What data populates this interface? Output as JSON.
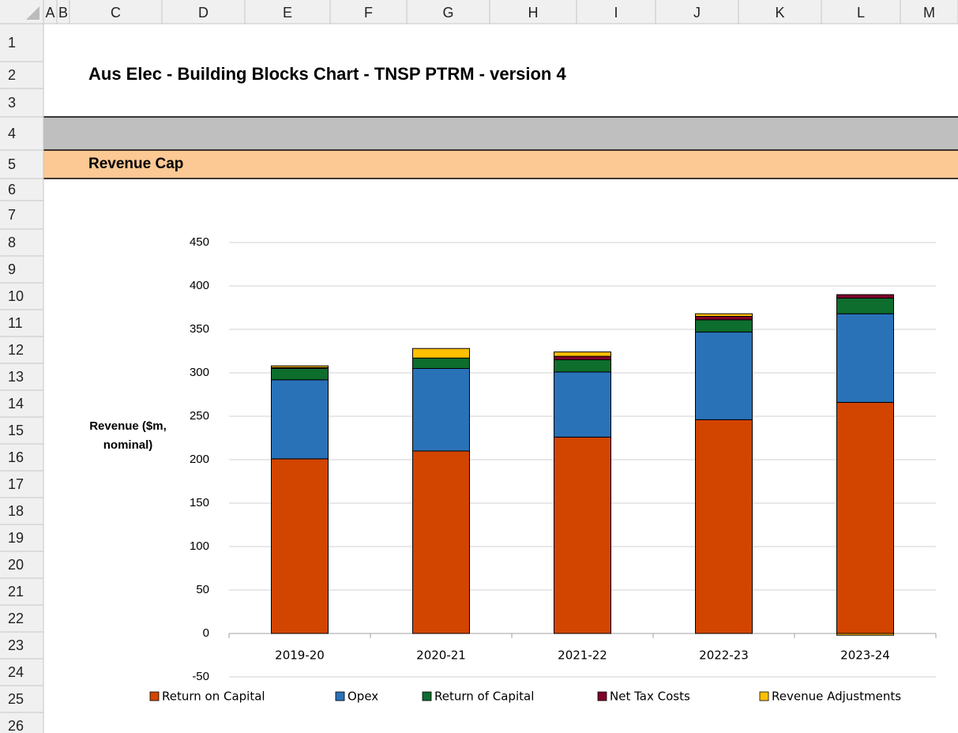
{
  "sheet": {
    "columns": [
      "A",
      "B",
      "C",
      "D",
      "E",
      "F",
      "G",
      "H",
      "I",
      "J",
      "K",
      "L",
      "M"
    ],
    "rows": [
      1,
      2,
      3,
      4,
      5,
      6,
      7,
      8,
      9,
      10,
      11,
      12,
      13,
      14,
      15,
      16,
      17,
      18,
      19,
      20,
      21,
      22,
      23,
      24,
      25,
      26
    ],
    "title": "Aus Elec - Building Blocks Chart - TNSP PTRM - version 4",
    "section": "Revenue Cap"
  },
  "chart_data": {
    "type": "stacked_bar",
    "y_label": "Revenue ($m, nominal)",
    "categories": [
      "2019-20",
      "2020-21",
      "2021-22",
      "2022-23",
      "2023-24"
    ],
    "series": [
      {
        "name": "Return on Capital",
        "color": "#d24500",
        "values": [
          201,
          210,
          226,
          246,
          266
        ]
      },
      {
        "name": "Opex",
        "color": "#2a72b8",
        "values": [
          91,
          95,
          75,
          101,
          102
        ]
      },
      {
        "name": "Return of Capital",
        "color": "#0e6e2e",
        "values": [
          13,
          12,
          14,
          14,
          18
        ]
      },
      {
        "name": "Net Tax Costs",
        "color": "#80002a",
        "values": [
          1,
          0,
          4,
          4,
          4
        ]
      },
      {
        "name": "Revenue Adjustments",
        "color": "#ffc000",
        "values": [
          2,
          11,
          5,
          3,
          -2
        ]
      }
    ],
    "ylim": [
      -50,
      450
    ],
    "yticks": [
      -50,
      0,
      50,
      100,
      150,
      200,
      250,
      300,
      350,
      400,
      450
    ],
    "grid": true,
    "legend": "bottom"
  }
}
